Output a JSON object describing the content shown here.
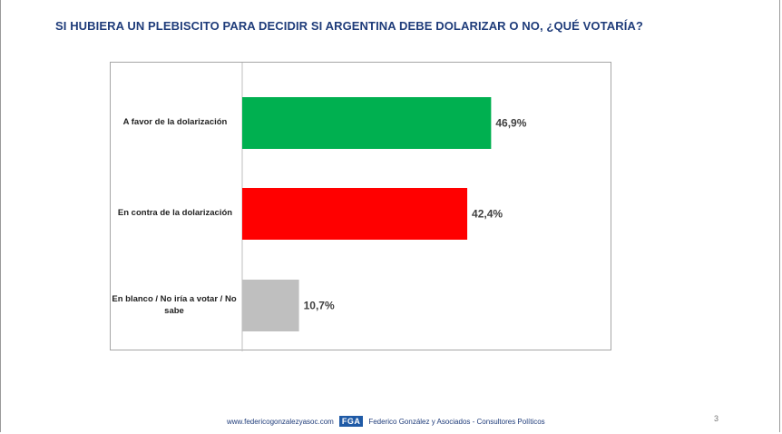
{
  "slide": {
    "title": "SI HUBIERA UN PLEBISCITO PARA DECIDIR SI ARGENTINA DEBE DOLARIZAR O NO, ¿QUÉ VOTARÍA?",
    "page_number": "3"
  },
  "footer": {
    "website": "www.federicogonzalezyasoc.com",
    "logo_text": "FGA",
    "company": "Federico González y Asociados - Consultores Políticos"
  },
  "colors": {
    "title": "#1f3c7a",
    "favor": "#00b050",
    "contra": "#ff0000",
    "blanco": "#bfbfbf"
  },
  "chart_data": {
    "type": "bar",
    "orientation": "horizontal",
    "categories": [
      "A favor de la dolarización",
      "En contra de la dolarización",
      "En blanco / No iría a votar / No sabe"
    ],
    "values": [
      46.9,
      42.4,
      10.7
    ],
    "value_labels": [
      "46,9%",
      "42,4%",
      "10,7%"
    ],
    "bar_colors": [
      "#00b050",
      "#ff0000",
      "#bfbfbf"
    ],
    "xlim": [
      0,
      100
    ],
    "grid": false,
    "legend": "none"
  }
}
